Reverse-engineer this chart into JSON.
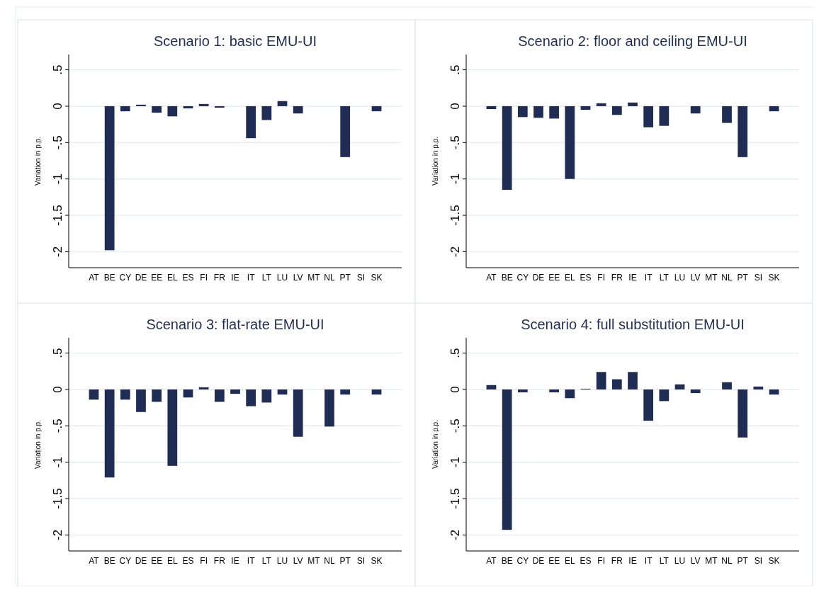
{
  "chart_data": [
    {
      "type": "bar",
      "title": "Scenario 1: basic EMU-UI",
      "ylabel": "Variation in p.p.",
      "categories": [
        "AT",
        "BE",
        "CY",
        "DE",
        "EE",
        "EL",
        "ES",
        "FI",
        "FR",
        "IE",
        "IT",
        "LT",
        "LU",
        "LV",
        "MT",
        "NL",
        "PT",
        "SI",
        "SK"
      ],
      "values": [
        0,
        -1.98,
        -0.07,
        0.02,
        -0.09,
        -0.14,
        -0.03,
        0.03,
        -0.02,
        0,
        -0.44,
        -0.19,
        0.07,
        -0.1,
        0,
        0,
        -0.7,
        0,
        -0.07
      ],
      "color": "#1f2d54",
      "ylim": [
        -2.22,
        0.71
      ],
      "yticks": [
        {
          "value": 0.5,
          "label": ".5"
        },
        0,
        {
          "value": -0.5,
          "label": "-.5"
        },
        -1,
        {
          "value": -1.5,
          "label": "-1.5"
        },
        -2
      ],
      "grid": "y"
    },
    {
      "type": "bar",
      "title": "Scenario 2: floor and ceiling EMU-UI",
      "ylabel": "Variation in p.p.",
      "categories": [
        "AT",
        "BE",
        "CY",
        "DE",
        "EE",
        "EL",
        "ES",
        "FI",
        "FR",
        "IE",
        "IT",
        "LT",
        "LU",
        "LV",
        "MT",
        "NL",
        "PT",
        "SI",
        "SK"
      ],
      "values": [
        -0.04,
        -1.15,
        -0.15,
        -0.16,
        -0.17,
        -1.0,
        -0.05,
        0.04,
        -0.12,
        0.05,
        -0.29,
        -0.27,
        0,
        -0.1,
        0,
        -0.23,
        -0.7,
        0,
        -0.07
      ],
      "color": "#1f2d54",
      "ylim": [
        -2.22,
        0.71
      ],
      "yticks": [
        {
          "value": 0.5,
          "label": ".5"
        },
        0,
        {
          "value": -0.5,
          "label": "-.5"
        },
        -1,
        {
          "value": -1.5,
          "label": "-1.5"
        },
        -2
      ],
      "grid": "y"
    },
    {
      "type": "bar",
      "title": "Scenario 3: flat-rate EMU-UI",
      "ylabel": "Variation in p.p.",
      "categories": [
        "AT",
        "BE",
        "CY",
        "DE",
        "EE",
        "EL",
        "ES",
        "FI",
        "FR",
        "IE",
        "IT",
        "LT",
        "LU",
        "LV",
        "MT",
        "NL",
        "PT",
        "SI",
        "SK"
      ],
      "values": [
        -0.14,
        -1.21,
        -0.14,
        -0.31,
        -0.17,
        -1.05,
        -0.11,
        0.03,
        -0.17,
        -0.06,
        -0.23,
        -0.18,
        -0.07,
        -0.65,
        0,
        -0.51,
        -0.07,
        0,
        -0.07
      ],
      "color": "#1f2d54",
      "ylim": [
        -2.22,
        0.71
      ],
      "yticks": [
        {
          "value": 0.5,
          "label": ".5"
        },
        0,
        {
          "value": -0.5,
          "label": "-.5"
        },
        -1,
        {
          "value": -1.5,
          "label": "-1.5"
        },
        -2
      ],
      "grid": "y"
    },
    {
      "type": "bar",
      "title": "Scenario 4: full substitution EMU-UI",
      "ylabel": "Variation in p.p.",
      "categories": [
        "AT",
        "BE",
        "CY",
        "DE",
        "EE",
        "EL",
        "ES",
        "FI",
        "FR",
        "IE",
        "IT",
        "LT",
        "LU",
        "LV",
        "MT",
        "NL",
        "PT",
        "SI",
        "SK"
      ],
      "values": [
        0.06,
        -1.93,
        -0.04,
        0,
        -0.04,
        -0.12,
        0.01,
        0.24,
        0.14,
        0.24,
        -0.43,
        -0.16,
        0.07,
        -0.05,
        0,
        0.1,
        -0.66,
        0.04,
        -0.07
      ],
      "color": "#1f2d54",
      "ylim": [
        -2.22,
        0.71
      ],
      "yticks": [
        {
          "value": 0.5,
          "label": ".5"
        },
        0,
        {
          "value": -0.5,
          "label": "-.5"
        },
        -1,
        {
          "value": -1.5,
          "label": "-1.5"
        },
        -2
      ],
      "grid": "y"
    }
  ]
}
